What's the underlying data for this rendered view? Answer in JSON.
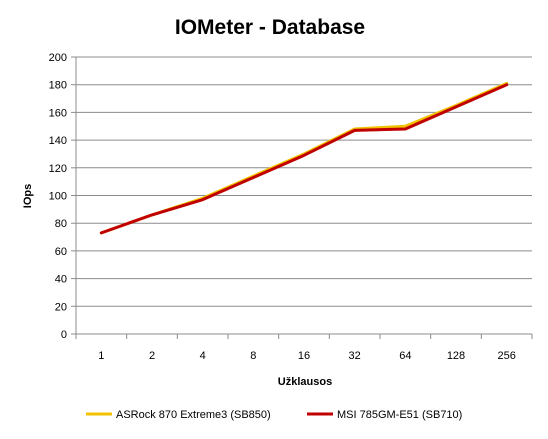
{
  "chart_data": {
    "type": "line",
    "title": "IOMeter - Database",
    "xlabel": "Užklausos",
    "ylabel": "IOps",
    "categories": [
      "1",
      "2",
      "4",
      "8",
      "16",
      "32",
      "64",
      "128",
      "256"
    ],
    "ylim": [
      0,
      200
    ],
    "yticks": [
      0,
      20,
      40,
      60,
      80,
      100,
      120,
      140,
      160,
      180,
      200
    ],
    "grid": "horizontal",
    "legend": "bottom",
    "series": [
      {
        "name": "ASRock 870 Extreme3 (SB850)",
        "color": "#F2C200",
        "values": [
          73,
          86,
          98,
          114,
          130,
          148,
          150,
          165,
          181
        ]
      },
      {
        "name": "MSI 785GM-E51 (SB710)",
        "color": "#C00000",
        "values": [
          73,
          86,
          97,
          113,
          129,
          147,
          148,
          164,
          180
        ]
      }
    ]
  }
}
